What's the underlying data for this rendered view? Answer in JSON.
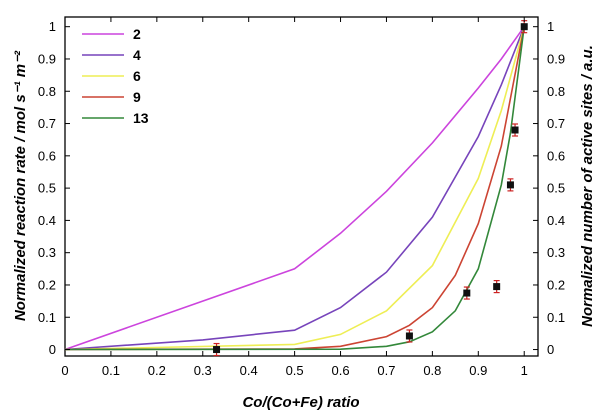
{
  "chart_data": {
    "type": "line",
    "xlabel": "Co/(Co+Fe) ratio",
    "ylabel_left": "Normalized reaction rate / mol s⁻¹ m⁻²",
    "ylabel_right": "Normalized number of active sites / a.u.",
    "xlim": [
      0,
      1.03
    ],
    "ylim": [
      -0.02,
      1.03
    ],
    "xticks": [
      "0",
      "0.1",
      "0.2",
      "0.3",
      "0.4",
      "0.5",
      "0.6",
      "0.7",
      "0.8",
      "0.9",
      "1"
    ],
    "yticks": [
      "0",
      "0.1",
      "0.2",
      "0.3",
      "0.4",
      "0.5",
      "0.6",
      "0.7",
      "0.8",
      "0.9",
      "1"
    ],
    "grid": false,
    "legend_position": "top-left",
    "series": [
      {
        "name": "2",
        "color": "#cc44dd",
        "x": [
          0,
          0.5,
          0.6,
          0.7,
          0.8,
          0.9,
          0.95,
          1.0
        ],
        "y": [
          0,
          0.25,
          0.36,
          0.49,
          0.64,
          0.81,
          0.9,
          1.0
        ]
      },
      {
        "name": "4",
        "color": "#7744bb",
        "x": [
          0,
          0.3,
          0.5,
          0.6,
          0.7,
          0.8,
          0.9,
          0.95,
          1.0
        ],
        "y": [
          0,
          0.03,
          0.06,
          0.13,
          0.24,
          0.41,
          0.66,
          0.82,
          1.0
        ]
      },
      {
        "name": "6",
        "color": "#eeee55",
        "x": [
          0,
          0.5,
          0.6,
          0.7,
          0.8,
          0.9,
          0.95,
          1.0
        ],
        "y": [
          0,
          0.016,
          0.047,
          0.12,
          0.26,
          0.53,
          0.74,
          1.0
        ]
      },
      {
        "name": "9",
        "color": "#cc4433",
        "x": [
          0,
          0.5,
          0.6,
          0.7,
          0.75,
          0.8,
          0.85,
          0.9,
          0.95,
          1.0
        ],
        "y": [
          0,
          0.002,
          0.01,
          0.04,
          0.075,
          0.13,
          0.23,
          0.39,
          0.63,
          1.0
        ]
      },
      {
        "name": "13",
        "color": "#33883a",
        "x": [
          0,
          0.6,
          0.7,
          0.75,
          0.8,
          0.85,
          0.9,
          0.95,
          0.97,
          1.0
        ],
        "y": [
          0,
          0.001,
          0.01,
          0.024,
          0.055,
          0.12,
          0.25,
          0.51,
          0.67,
          1.0
        ]
      }
    ],
    "points": {
      "color": "#111111",
      "errorbar_color": "#cc2222",
      "x": [
        0.33,
        0.75,
        0.875,
        0.94,
        0.97,
        0.98,
        1.0
      ],
      "y": [
        0,
        0.042,
        0.175,
        0.195,
        0.51,
        0.68,
        1.0
      ]
    }
  }
}
